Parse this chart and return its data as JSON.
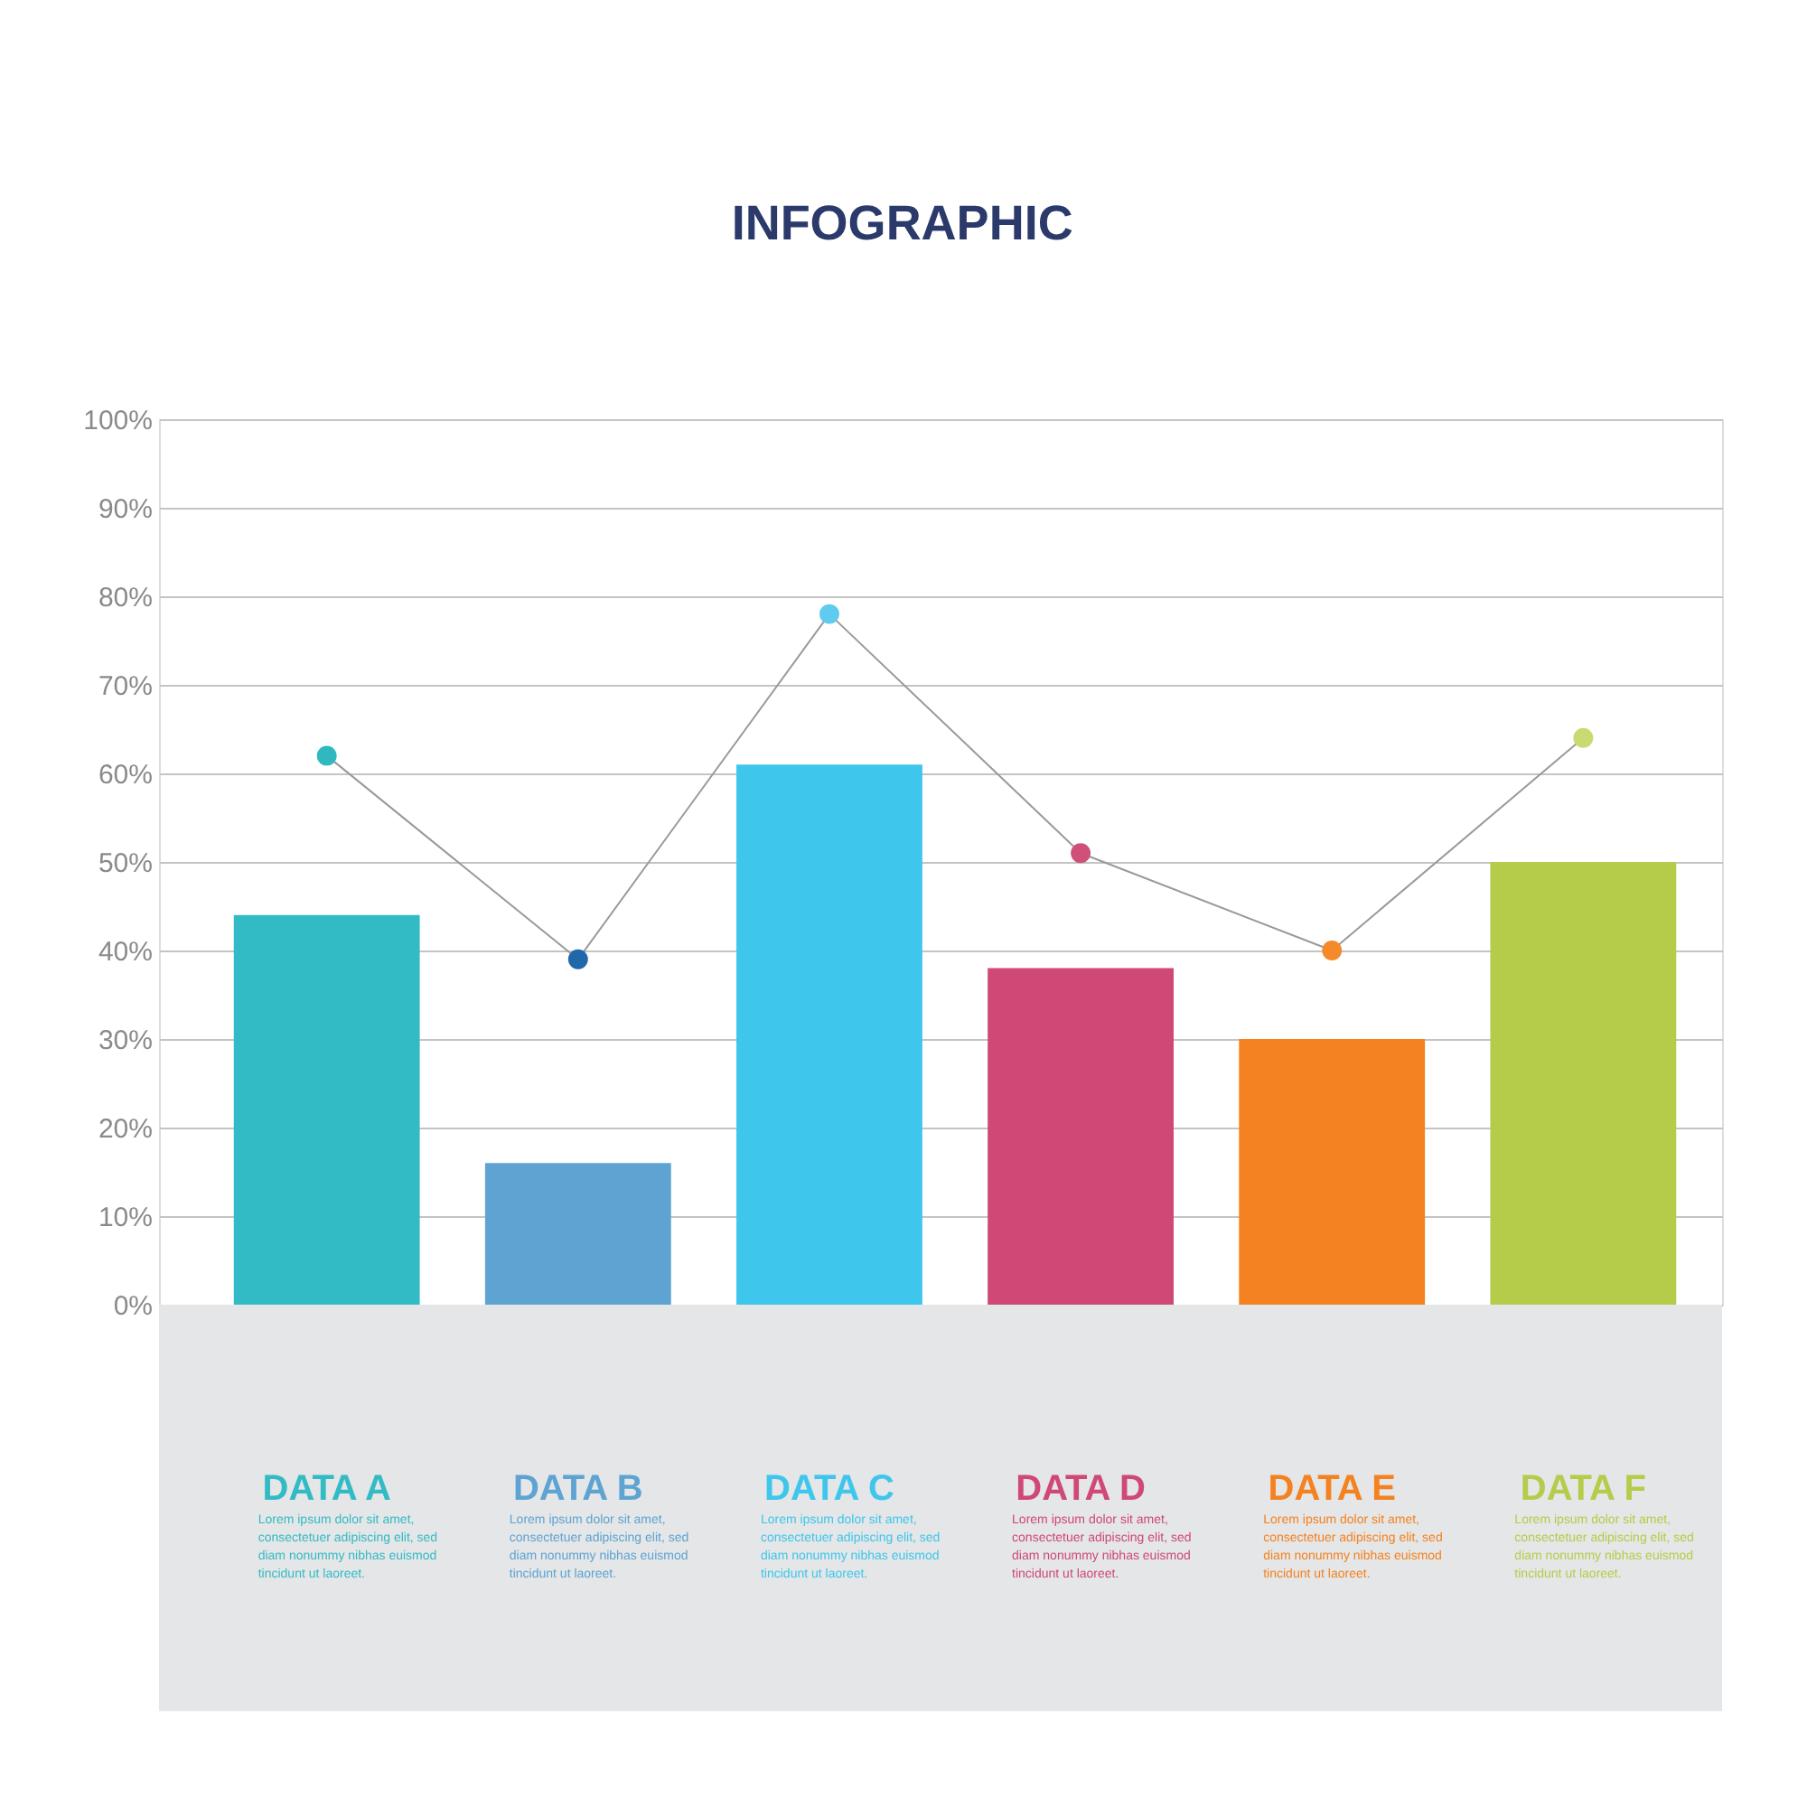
{
  "chart_data": {
    "type": "bar",
    "title": "INFOGRAPHIC",
    "categories": [
      "DATA A",
      "DATA B",
      "DATA C",
      "DATA D",
      "DATA E",
      "DATA F"
    ],
    "series": [
      {
        "type": "bar",
        "colors": [
          "#33bbc5",
          "#5fa3d3",
          "#3ec6ec",
          "#cf4876",
          "#f58220",
          "#b5cc4a"
        ],
        "values": [
          44,
          16,
          61,
          38,
          30,
          50
        ]
      },
      {
        "type": "line",
        "color": "#9a9a9a",
        "colors": [
          "#2fb8c0",
          "#1f69aa",
          "#5fcbee",
          "#cf5079",
          "#f58a2a",
          "#c8da70"
        ],
        "values": [
          62,
          39,
          78,
          51,
          40,
          64
        ]
      }
    ],
    "ylim": [
      0,
      100
    ],
    "yticks": [
      {
        "value": 0,
        "label": "0%"
      },
      {
        "value": 10,
        "label": "10%"
      },
      {
        "value": 20,
        "label": "20%"
      },
      {
        "value": 30,
        "label": "30%"
      },
      {
        "value": 40,
        "label": "40%"
      },
      {
        "value": 50,
        "label": "50%"
      },
      {
        "value": 60,
        "label": "60%"
      },
      {
        "value": 70,
        "label": "70%"
      },
      {
        "value": 80,
        "label": "80%"
      },
      {
        "value": 90,
        "label": "90%"
      },
      {
        "value": 100,
        "label": "100%"
      }
    ],
    "grid": "y",
    "legend": false,
    "marker": "circle",
    "line_style": "solid",
    "annotations": [
      "Lorem ipsum dolor sit amet, consectetuer adipiscing elit, sed diam nonummy nibhas euismod tincidunt ut laoreet.",
      "Lorem ipsum dolor sit amet, consectetuer adipiscing elit, sed diam nonummy nibhas euismod tincidunt ut laoreet.",
      "Lorem ipsum dolor sit amet, consectetuer adipiscing elit, sed diam nonummy nibhas euismod tincidunt ut laoreet.",
      "Lorem ipsum dolor sit amet, consectetuer adipiscing elit, sed diam nonummy nibhas euismod tincidunt ut laoreet.",
      "Lorem ipsum dolor sit amet, consectetuer adipiscing elit, sed diam nonummy nibhas euismod tincidunt ut laoreet.",
      "Lorem ipsum dolor sit amet, consectetuer adipiscing elit, sed diam nonummy nibhas euismod tincidunt ut laoreet."
    ]
  }
}
